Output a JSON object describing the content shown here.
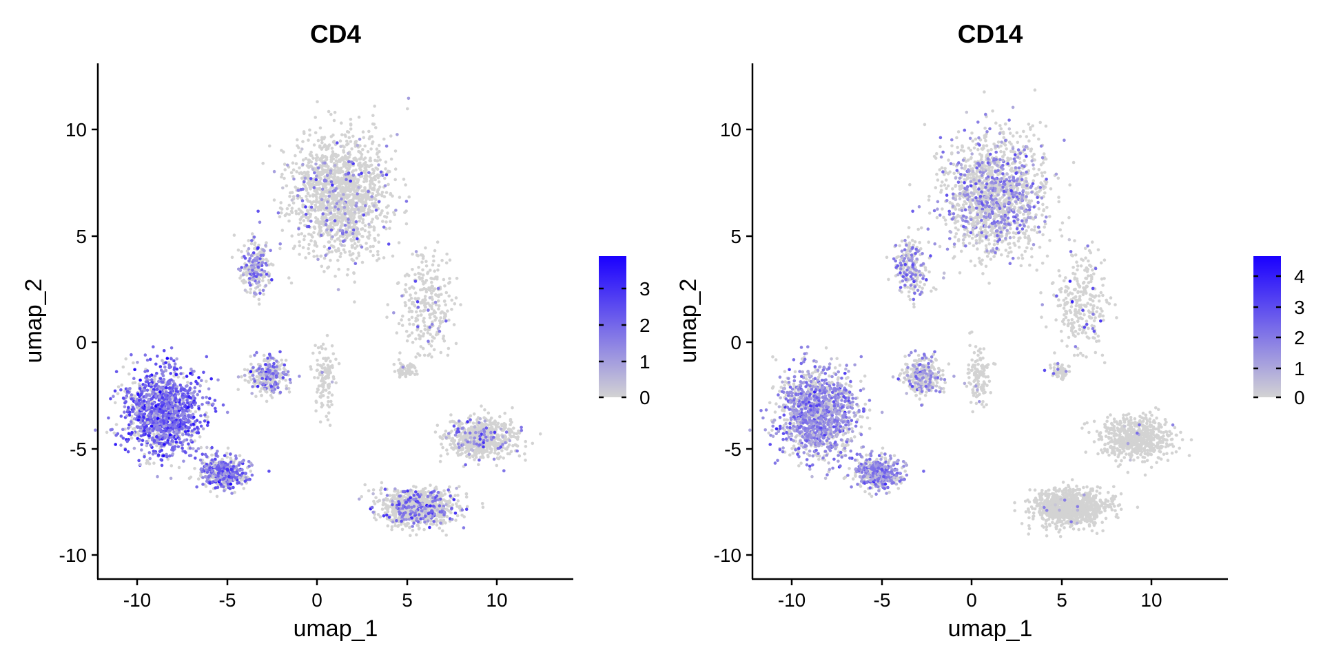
{
  "colors": {
    "low": "#d3d3d3",
    "high": "#1a00ff"
  },
  "chart_data": [
    {
      "type": "scatter",
      "title": "CD4",
      "xlabel": "umap_1",
      "ylabel": "umap_2",
      "xlim": [
        -12,
        14.5
      ],
      "ylim": [
        -11,
        13.2
      ],
      "xticks": [
        "-10",
        "-5",
        "0",
        "5",
        "10"
      ],
      "yticks": [
        "-10",
        "-5",
        "0",
        "5",
        "10"
      ],
      "colorbar": {
        "ticks": [
          "0",
          "1",
          "2",
          "3"
        ],
        "min": 0,
        "max": 3.8
      },
      "grid": false,
      "clusters": [
        {
          "region": "top-large-cluster",
          "center": [
            1.5,
            7.0
          ],
          "spread": [
            2.6,
            2.6
          ],
          "count": 1500,
          "expr_fraction": 0.09,
          "expr_mean": 1.4
        },
        {
          "region": "top-left-tail",
          "center": [
            -3.2,
            3.6
          ],
          "spread": [
            0.8,
            1.2
          ],
          "count": 220,
          "expr_fraction": 0.35,
          "expr_mean": 1.5
        },
        {
          "region": "left-arc-cluster",
          "center": [
            -8.4,
            -3.2
          ],
          "spread": [
            1.9,
            1.8
          ],
          "count": 1400,
          "expr_fraction": 0.72,
          "expr_mean": 1.9
        },
        {
          "region": "lower-left-arc",
          "center": [
            -5.0,
            -6.0
          ],
          "spread": [
            1.2,
            0.7
          ],
          "count": 450,
          "expr_fraction": 0.55,
          "expr_mean": 1.8
        },
        {
          "region": "left-mid-bridge",
          "center": [
            -2.5,
            -1.5
          ],
          "spread": [
            1.0,
            0.8
          ],
          "count": 280,
          "expr_fraction": 0.35,
          "expr_mean": 1.6
        },
        {
          "region": "bottom-right-cluster",
          "center": [
            5.8,
            -7.6
          ],
          "spread": [
            1.9,
            0.8
          ],
          "count": 900,
          "expr_fraction": 0.22,
          "expr_mean": 1.7
        },
        {
          "region": "bottom-right-upper",
          "center": [
            9.3,
            -4.4
          ],
          "spread": [
            1.9,
            0.9
          ],
          "count": 600,
          "expr_fraction": 0.12,
          "expr_mean": 1.5
        },
        {
          "region": "mid-small-islands",
          "center": [
            6.3,
            2.0
          ],
          "spread": [
            1.4,
            2.2
          ],
          "count": 280,
          "expr_fraction": 0.06,
          "expr_mean": 1.2
        },
        {
          "region": "center-stream",
          "center": [
            0.6,
            -1.5
          ],
          "spread": [
            0.6,
            1.4
          ],
          "count": 120,
          "expr_fraction": 0.03,
          "expr_mean": 1.0
        },
        {
          "region": "lower-mid-islands",
          "center": [
            5.1,
            -1.2
          ],
          "spread": [
            0.5,
            0.3
          ],
          "count": 60,
          "expr_fraction": 0.02,
          "expr_mean": 1.0
        }
      ]
    },
    {
      "type": "scatter",
      "title": "CD14",
      "xlabel": "umap_1",
      "ylabel": "umap_2",
      "xlim": [
        -12,
        14.5
      ],
      "ylim": [
        -11,
        13.2
      ],
      "xticks": [
        "-10",
        "-5",
        "0",
        "5",
        "10"
      ],
      "yticks": [
        "-10",
        "-5",
        "0",
        "5",
        "10"
      ],
      "colorbar": {
        "ticks": [
          "0",
          "1",
          "2",
          "3",
          "4"
        ],
        "min": 0,
        "max": 4.6
      },
      "grid": false,
      "clusters": [
        {
          "region": "top-large-cluster",
          "center": [
            1.5,
            7.0
          ],
          "spread": [
            2.6,
            2.6
          ],
          "count": 1500,
          "expr_fraction": 0.3,
          "expr_mean": 1.6
        },
        {
          "region": "top-left-tail",
          "center": [
            -3.2,
            3.6
          ],
          "spread": [
            0.8,
            1.2
          ],
          "count": 220,
          "expr_fraction": 0.4,
          "expr_mean": 1.6
        },
        {
          "region": "left-arc-cluster",
          "center": [
            -8.4,
            -3.2
          ],
          "spread": [
            1.9,
            1.8
          ],
          "count": 1400,
          "expr_fraction": 0.6,
          "expr_mean": 1.6
        },
        {
          "region": "lower-left-arc",
          "center": [
            -5.0,
            -6.0
          ],
          "spread": [
            1.2,
            0.7
          ],
          "count": 450,
          "expr_fraction": 0.55,
          "expr_mean": 1.7
        },
        {
          "region": "left-mid-bridge",
          "center": [
            -2.5,
            -1.5
          ],
          "spread": [
            1.0,
            0.8
          ],
          "count": 280,
          "expr_fraction": 0.3,
          "expr_mean": 1.5
        },
        {
          "region": "bottom-right-cluster",
          "center": [
            5.8,
            -7.6
          ],
          "spread": [
            1.9,
            0.8
          ],
          "count": 900,
          "expr_fraction": 0.01,
          "expr_mean": 1.0
        },
        {
          "region": "bottom-right-upper",
          "center": [
            9.3,
            -4.4
          ],
          "spread": [
            1.9,
            0.9
          ],
          "count": 600,
          "expr_fraction": 0.01,
          "expr_mean": 1.0
        },
        {
          "region": "mid-small-islands",
          "center": [
            6.3,
            2.0
          ],
          "spread": [
            1.4,
            2.2
          ],
          "count": 280,
          "expr_fraction": 0.08,
          "expr_mean": 2.5
        },
        {
          "region": "center-stream",
          "center": [
            0.6,
            -1.5
          ],
          "spread": [
            0.6,
            1.4
          ],
          "count": 120,
          "expr_fraction": 0.02,
          "expr_mean": 1.0
        },
        {
          "region": "lower-mid-islands",
          "center": [
            5.1,
            -1.2
          ],
          "spread": [
            0.5,
            0.3
          ],
          "count": 60,
          "expr_fraction": 0.05,
          "expr_mean": 2.0
        }
      ]
    }
  ]
}
